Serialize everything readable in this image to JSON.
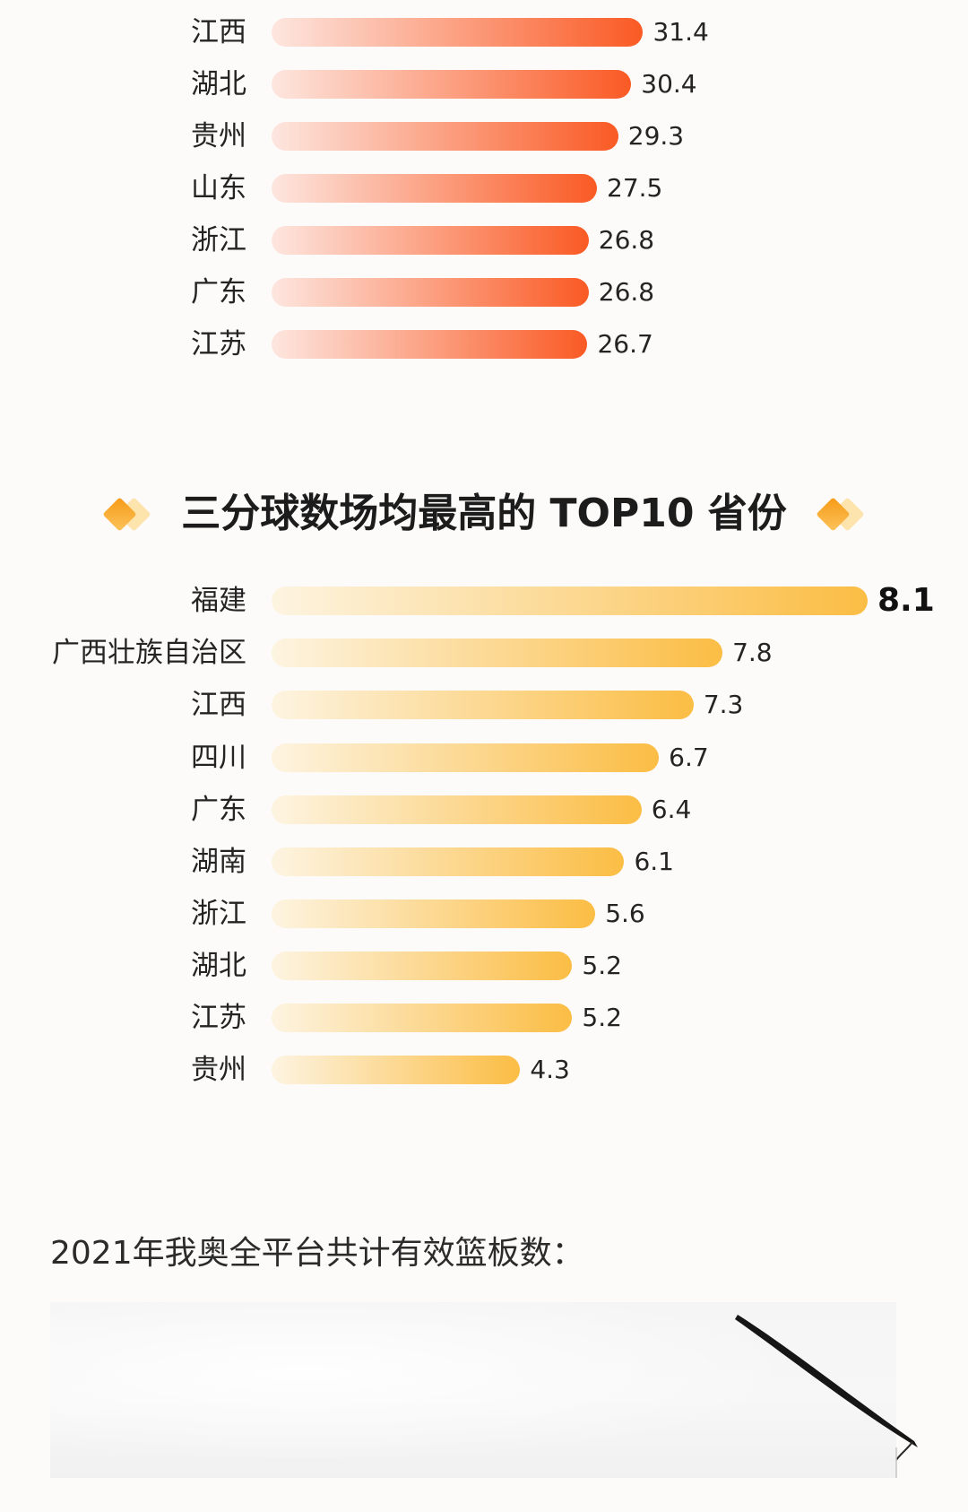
{
  "chart_data": [
    {
      "type": "bar",
      "categories": [
        "江西",
        "湖北",
        "贵州",
        "山东",
        "浙江",
        "广东",
        "江苏"
      ],
      "values": [
        31.4,
        30.4,
        29.3,
        27.5,
        26.8,
        26.8,
        26.7
      ],
      "bar_colors": {
        "from": "#fde6df",
        "to": "#fa5a24"
      }
    },
    {
      "type": "bar",
      "title": "三分球数场均最高的 TOP10 省份",
      "categories": [
        "福建",
        "广西壮族自治区",
        "江西",
        "四川",
        "广东",
        "湖南",
        "浙江",
        "湖北",
        "江苏",
        "贵州"
      ],
      "values": [
        8.1,
        7.8,
        7.3,
        6.7,
        6.4,
        6.1,
        5.6,
        5.2,
        5.2,
        4.3
      ],
      "emphasis": [
        true,
        false,
        false,
        false,
        false,
        false,
        false,
        false,
        false,
        false
      ],
      "bar_colors": {
        "from": "#fdf4e1",
        "to": "#fbbd44"
      }
    }
  ],
  "title_decoration": {
    "icon": "diamond-icon",
    "front_colors": [
      "#f69a17",
      "#fcc35b"
    ],
    "back_color": "#fddf9f"
  },
  "footer": {
    "text": "2021年我奥全平台共计有效篮板数："
  }
}
